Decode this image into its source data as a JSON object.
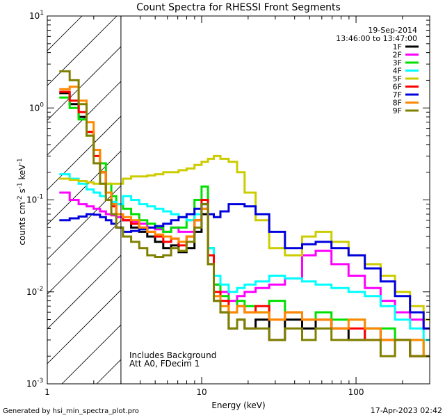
{
  "chart_data": {
    "type": "line",
    "title": "Count Spectra for RHESSI Front Segments",
    "xlabel": "Energy (keV)",
    "ylabel": "counts cm-2 s-1 keV-1",
    "xscale": "log",
    "yscale": "log",
    "xlim": [
      1,
      300
    ],
    "ylim": [
      0.001,
      10
    ],
    "x_ticks": [
      {
        "value": 1,
        "label": "1"
      },
      {
        "value": 10,
        "label": "10"
      },
      {
        "value": 100,
        "label": "100"
      }
    ],
    "y_ticks": [
      {
        "value": 10,
        "base": "10",
        "exp": "1"
      },
      {
        "value": 1,
        "base": "10",
        "exp": "0"
      },
      {
        "value": 0.1,
        "base": "10",
        "exp": "-1"
      },
      {
        "value": 0.01,
        "base": "10",
        "exp": "-2"
      },
      {
        "value": 0.001,
        "base": "10",
        "exp": "-3"
      }
    ],
    "date": "19-Sep-2014",
    "time_range": "13:46:00 to 13:47:00",
    "notes": [
      "Includes Background",
      "Att A0, FDecim 1"
    ],
    "hatched_region": {
      "x_min": 1.0,
      "x_max": 3.0
    },
    "series": [
      {
        "name": "1F",
        "color": "#000000",
        "x": [
          1.3,
          1.5,
          1.7,
          1.9,
          2.1,
          2.3,
          2.5,
          2.7,
          2.9,
          3.3,
          3.7,
          4.2,
          4.7,
          5.3,
          6.0,
          6.7,
          7.5,
          8.5,
          9.5,
          10.5,
          11.5,
          12.5,
          14,
          16,
          18,
          20,
          25,
          30,
          40,
          50,
          60,
          80,
          100,
          130,
          160,
          200,
          250,
          300
        ],
        "y": [
          1.45,
          1.1,
          0.8,
          0.55,
          0.35,
          0.2,
          0.12,
          0.09,
          0.07,
          0.06,
          0.05,
          0.045,
          0.04,
          0.035,
          0.03,
          0.032,
          0.027,
          0.03,
          0.045,
          0.07,
          0.02,
          0.008,
          0.006,
          0.004,
          0.005,
          0.004,
          0.005,
          0.003,
          0.005,
          0.004,
          0.005,
          0.004,
          0.003,
          0.004,
          0.003,
          0.003,
          0.002,
          0.002
        ]
      },
      {
        "name": "2F",
        "color": "#ff00ff",
        "x": [
          1.3,
          1.5,
          1.7,
          1.9,
          2.1,
          2.3,
          2.5,
          2.7,
          2.9,
          3.3,
          3.7,
          4.2,
          4.7,
          5.3,
          6.0,
          6.7,
          7.5,
          8.5,
          9.5,
          10.5,
          11.5,
          12.5,
          14,
          16,
          18,
          20,
          25,
          30,
          40,
          50,
          60,
          80,
          100,
          130,
          160,
          200,
          250,
          300
        ],
        "y": [
          0.12,
          0.1,
          0.09,
          0.085,
          0.08,
          0.075,
          0.07,
          0.068,
          0.065,
          0.06,
          0.058,
          0.055,
          0.05,
          0.048,
          0.045,
          0.05,
          0.045,
          0.045,
          0.06,
          0.08,
          0.03,
          0.012,
          0.01,
          0.008,
          0.009,
          0.01,
          0.011,
          0.012,
          0.014,
          0.025,
          0.028,
          0.02,
          0.015,
          0.011,
          0.008,
          0.006,
          0.005,
          0.004
        ]
      },
      {
        "name": "3F",
        "color": "#00e000",
        "x": [
          1.3,
          1.5,
          1.7,
          1.9,
          2.1,
          2.3,
          2.5,
          2.7,
          2.9,
          3.3,
          3.7,
          4.2,
          4.7,
          5.3,
          6.0,
          6.7,
          7.5,
          8.5,
          9.5,
          10.5,
          11.5,
          12.5,
          14,
          16,
          18,
          20,
          25,
          30,
          40,
          50,
          60,
          80,
          100,
          130,
          160,
          200,
          250,
          300
        ],
        "y": [
          1.3,
          1.0,
          0.75,
          0.5,
          0.35,
          0.25,
          0.15,
          0.11,
          0.09,
          0.08,
          0.07,
          0.06,
          0.055,
          0.05,
          0.045,
          0.05,
          0.05,
          0.06,
          0.1,
          0.14,
          0.03,
          0.012,
          0.009,
          0.006,
          0.008,
          0.007,
          0.006,
          0.008,
          0.006,
          0.005,
          0.006,
          0.005,
          0.005,
          0.004,
          0.004,
          0.003,
          0.003,
          0.002
        ]
      },
      {
        "name": "4F",
        "color": "#00ffff",
        "x": [
          1.3,
          1.5,
          1.7,
          1.9,
          2.1,
          2.3,
          2.5,
          2.7,
          2.9,
          3.3,
          3.7,
          4.2,
          4.7,
          5.3,
          6.0,
          6.7,
          7.5,
          8.5,
          9.5,
          10.5,
          11.5,
          12.5,
          14,
          16,
          18,
          20,
          25,
          30,
          40,
          50,
          60,
          80,
          100,
          130,
          160,
          200,
          250,
          300
        ],
        "y": [
          0.19,
          0.17,
          0.15,
          0.13,
          0.12,
          0.11,
          0.1,
          0.095,
          0.09,
          0.11,
          0.1,
          0.09,
          0.085,
          0.08,
          0.075,
          0.07,
          0.065,
          0.06,
          0.07,
          0.09,
          0.03,
          0.015,
          0.012,
          0.01,
          0.011,
          0.012,
          0.013,
          0.015,
          0.014,
          0.013,
          0.012,
          0.011,
          0.01,
          0.009,
          0.007,
          0.005,
          0.004,
          0.003
        ]
      },
      {
        "name": "5F",
        "color": "#cccc00",
        "x": [
          1.3,
          1.5,
          1.7,
          1.9,
          2.1,
          2.3,
          2.5,
          2.7,
          2.9,
          3.3,
          3.7,
          4.2,
          4.7,
          5.3,
          6.0,
          6.7,
          7.5,
          8.5,
          9.5,
          10.5,
          11.5,
          12.5,
          14,
          16,
          18,
          20,
          25,
          30,
          40,
          50,
          60,
          80,
          100,
          130,
          160,
          200,
          250,
          300
        ],
        "y": [
          0.17,
          0.165,
          0.16,
          0.155,
          0.15,
          0.15,
          0.15,
          0.15,
          0.15,
          0.17,
          0.18,
          0.18,
          0.185,
          0.19,
          0.2,
          0.2,
          0.21,
          0.22,
          0.24,
          0.26,
          0.28,
          0.3,
          0.28,
          0.26,
          0.2,
          0.12,
          0.06,
          0.03,
          0.025,
          0.04,
          0.045,
          0.035,
          0.025,
          0.02,
          0.015,
          0.01,
          0.007,
          0.005
        ]
      },
      {
        "name": "6F",
        "color": "#ff0000",
        "x": [
          1.3,
          1.5,
          1.7,
          1.9,
          2.1,
          2.3,
          2.5,
          2.7,
          2.9,
          3.3,
          3.7,
          4.2,
          4.7,
          5.3,
          6.0,
          6.7,
          7.5,
          8.5,
          9.5,
          10.5,
          11.5,
          12.5,
          14,
          16,
          18,
          20,
          25,
          30,
          40,
          50,
          60,
          80,
          100,
          130,
          160,
          200,
          250,
          300
        ],
        "y": [
          1.5,
          1.2,
          0.9,
          0.55,
          0.3,
          0.2,
          0.12,
          0.085,
          0.07,
          0.06,
          0.055,
          0.05,
          0.045,
          0.04,
          0.035,
          0.038,
          0.032,
          0.04,
          0.06,
          0.1,
          0.025,
          0.01,
          0.008,
          0.006,
          0.007,
          0.006,
          0.007,
          0.005,
          0.006,
          0.005,
          0.005,
          0.004,
          0.004,
          0.003,
          0.003,
          0.003,
          0.002,
          0.002
        ]
      },
      {
        "name": "7F",
        "color": "#0000dd",
        "x": [
          1.3,
          1.5,
          1.7,
          1.9,
          2.1,
          2.3,
          2.5,
          2.7,
          2.9,
          3.3,
          3.7,
          4.2,
          4.7,
          5.3,
          6.0,
          6.7,
          7.5,
          8.5,
          9.5,
          10.5,
          11.5,
          12.5,
          14,
          16,
          18,
          20,
          25,
          30,
          40,
          50,
          60,
          80,
          100,
          130,
          160,
          200,
          250,
          300
        ],
        "y": [
          0.06,
          0.063,
          0.066,
          0.07,
          0.069,
          0.065,
          0.06,
          0.055,
          0.05,
          0.045,
          0.046,
          0.048,
          0.05,
          0.052,
          0.055,
          0.06,
          0.065,
          0.07,
          0.08,
          0.09,
          0.07,
          0.065,
          0.075,
          0.09,
          0.09,
          0.085,
          0.07,
          0.045,
          0.03,
          0.033,
          0.035,
          0.03,
          0.025,
          0.018,
          0.013,
          0.009,
          0.006,
          0.004
        ]
      },
      {
        "name": "8F",
        "color": "#ff8800",
        "x": [
          1.3,
          1.5,
          1.7,
          1.9,
          2.1,
          2.3,
          2.5,
          2.7,
          2.9,
          3.3,
          3.7,
          4.2,
          4.7,
          5.3,
          6.0,
          6.7,
          7.5,
          8.5,
          9.5,
          10.5,
          11.5,
          12.5,
          14,
          16,
          18,
          20,
          25,
          30,
          40,
          50,
          60,
          80,
          100,
          130,
          160,
          200,
          250,
          300
        ],
        "y": [
          1.6,
          1.7,
          1.2,
          0.7,
          0.35,
          0.2,
          0.12,
          0.09,
          0.07,
          0.065,
          0.06,
          0.05,
          0.045,
          0.042,
          0.04,
          0.038,
          0.035,
          0.04,
          0.06,
          0.08,
          0.02,
          0.009,
          0.007,
          0.006,
          0.007,
          0.006,
          0.006,
          0.005,
          0.006,
          0.005,
          0.005,
          0.004,
          0.005,
          0.004,
          0.003,
          0.003,
          0.003,
          0.002
        ]
      },
      {
        "name": "9F",
        "color": "#808000",
        "x": [
          1.3,
          1.5,
          1.7,
          1.9,
          2.1,
          2.3,
          2.5,
          2.7,
          2.9,
          3.3,
          3.7,
          4.2,
          4.7,
          5.3,
          6.0,
          6.7,
          7.5,
          8.5,
          9.5,
          10.5,
          11.5,
          12.5,
          14,
          16,
          18,
          20,
          25,
          30,
          40,
          50,
          60,
          80,
          100,
          130,
          160,
          200,
          250,
          300
        ],
        "y": [
          2.5,
          2.0,
          1.1,
          0.5,
          0.25,
          0.15,
          0.1,
          0.07,
          0.05,
          0.04,
          0.035,
          0.03,
          0.025,
          0.024,
          0.025,
          0.03,
          0.028,
          0.035,
          0.05,
          0.09,
          0.02,
          0.008,
          0.006,
          0.004,
          0.005,
          0.004,
          0.004,
          0.003,
          0.004,
          0.003,
          0.004,
          0.003,
          0.003,
          0.003,
          0.002,
          0.003,
          0.002,
          0.002
        ]
      }
    ]
  },
  "footer": {
    "generated_by": "Generated by hsi_min_spectra_plot.pro",
    "timestamp": "17-Apr-2023 02:42"
  }
}
